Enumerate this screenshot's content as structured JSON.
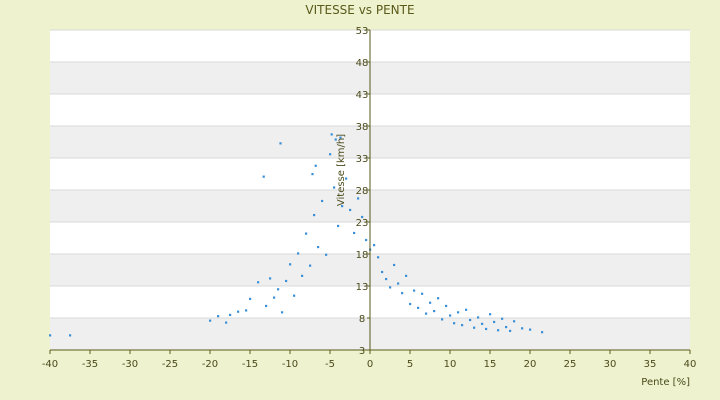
{
  "chart_data": {
    "type": "scatter",
    "title": "VITESSE vs PENTE",
    "xlabel": "Pente [%]",
    "ylabel": "Vitesse [km/h]",
    "xlim": [
      -40,
      40
    ],
    "ylim": [
      3,
      53
    ],
    "x_ticks": [
      -40,
      -35,
      -30,
      -25,
      -20,
      -15,
      -10,
      -5,
      0,
      5,
      10,
      15,
      20,
      25,
      30,
      35,
      40
    ],
    "y_ticks": [
      3,
      8,
      13,
      18,
      23,
      28,
      33,
      38,
      43,
      48,
      53
    ],
    "grid": true,
    "legend": "none",
    "colors": {
      "primary": "#3a8fd6",
      "secondary": "#8a9a1e",
      "band": "#efefef",
      "axis": "#5a5a1a"
    },
    "series": [
      {
        "color": "#3a8fd6",
        "points": [
          [
            -40,
            5.3
          ],
          [
            -37.5,
            5.3
          ],
          [
            -20,
            7.6
          ],
          [
            -19,
            8.3
          ],
          [
            -18,
            7.3
          ],
          [
            -17.5,
            8.5
          ],
          [
            -16.5,
            9.0
          ],
          [
            -15.5,
            9.2
          ],
          [
            -15,
            11
          ],
          [
            -14,
            13.6
          ],
          [
            -13,
            9.9
          ],
          [
            -12.5,
            14.2
          ],
          [
            -12,
            11.2
          ],
          [
            -11.5,
            12.5
          ],
          [
            -11.2,
            35.3
          ],
          [
            -13.3,
            30.1
          ],
          [
            -11,
            8.9
          ],
          [
            -10.5,
            13.8
          ],
          [
            -10,
            16.4
          ],
          [
            -9.5,
            11.5
          ],
          [
            -9,
            18.1
          ],
          [
            -8.5,
            14.6
          ],
          [
            -8,
            21.2
          ],
          [
            -7.5,
            16.2
          ],
          [
            -7,
            24.1
          ],
          [
            -7.2,
            30.5
          ],
          [
            -6.8,
            31.8
          ],
          [
            -6.5,
            19.1
          ],
          [
            -6,
            26.3
          ],
          [
            -5.5,
            17.9
          ],
          [
            -5,
            33.6
          ],
          [
            -4.8,
            36.7
          ],
          [
            -4.5,
            28.4
          ],
          [
            -4.3,
            35.9
          ],
          [
            -4,
            22.4
          ],
          [
            -3.7,
            36.2
          ],
          [
            -3.5,
            25.5
          ],
          [
            -3,
            29.8
          ],
          [
            -2.5,
            24.9
          ],
          [
            -2,
            21.3
          ],
          [
            -1.5,
            26.7
          ],
          [
            -1,
            23.8
          ],
          [
            -0.5,
            20.2
          ],
          [
            0,
            18.7
          ],
          [
            0.5,
            19.4
          ],
          [
            1,
            17.5
          ],
          [
            1.5,
            15.2
          ],
          [
            2,
            14.1
          ],
          [
            2.5,
            12.8
          ],
          [
            3,
            16.3
          ],
          [
            3.5,
            13.4
          ],
          [
            4,
            11.9
          ],
          [
            4.5,
            14.6
          ],
          [
            5,
            10.2
          ],
          [
            5.5,
            12.3
          ],
          [
            6,
            9.6
          ],
          [
            6.5,
            11.8
          ],
          [
            7,
            8.7
          ],
          [
            7.5,
            10.4
          ],
          [
            8,
            9.1
          ],
          [
            8.5,
            11.1
          ],
          [
            9,
            7.8
          ],
          [
            9.5,
            9.9
          ],
          [
            10,
            8.4
          ],
          [
            10.5,
            7.2
          ],
          [
            11,
            8.9
          ],
          [
            11.5,
            6.9
          ],
          [
            12,
            9.3
          ],
          [
            12.5,
            7.7
          ],
          [
            13,
            6.5
          ],
          [
            13.5,
            8.1
          ],
          [
            14,
            7.1
          ],
          [
            14.5,
            6.3
          ],
          [
            15,
            8.6
          ],
          [
            15.5,
            7.4
          ],
          [
            16,
            6.1
          ],
          [
            16.5,
            7.9
          ],
          [
            17,
            6.6
          ],
          [
            17.5,
            6.0
          ],
          [
            18,
            7.5
          ],
          [
            19,
            6.4
          ],
          [
            20,
            6.2
          ],
          [
            21.5,
            5.8
          ]
        ]
      }
    ]
  }
}
